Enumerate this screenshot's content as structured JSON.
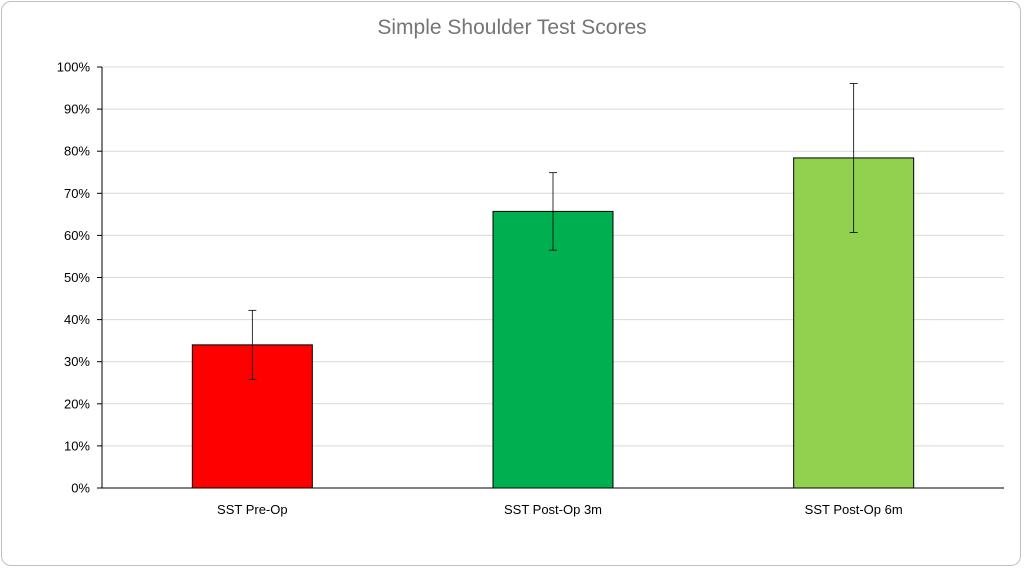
{
  "chart_data": {
    "type": "bar",
    "title": "Simple Shoulder Test Scores",
    "categories": [
      "SST Pre-Op",
      "SST Post-Op 3m",
      "SST Post-Op 6m"
    ],
    "values": [
      34,
      65.7,
      78.4
    ],
    "error_upper": [
      42.2,
      74.9,
      96.1
    ],
    "error_lower": [
      25.8,
      56.5,
      60.7
    ],
    "colors": [
      "#ff0000",
      "#00b050",
      "#92d050"
    ],
    "ylim": [
      0,
      100
    ],
    "yticks": [
      0,
      10,
      20,
      30,
      40,
      50,
      60,
      70,
      80,
      90,
      100
    ],
    "ytick_labels": [
      "0%",
      "10%",
      "20%",
      "30%",
      "40%",
      "50%",
      "60%",
      "70%",
      "80%",
      "90%",
      "100%"
    ],
    "grid": true,
    "xlabel": "",
    "ylabel": ""
  }
}
